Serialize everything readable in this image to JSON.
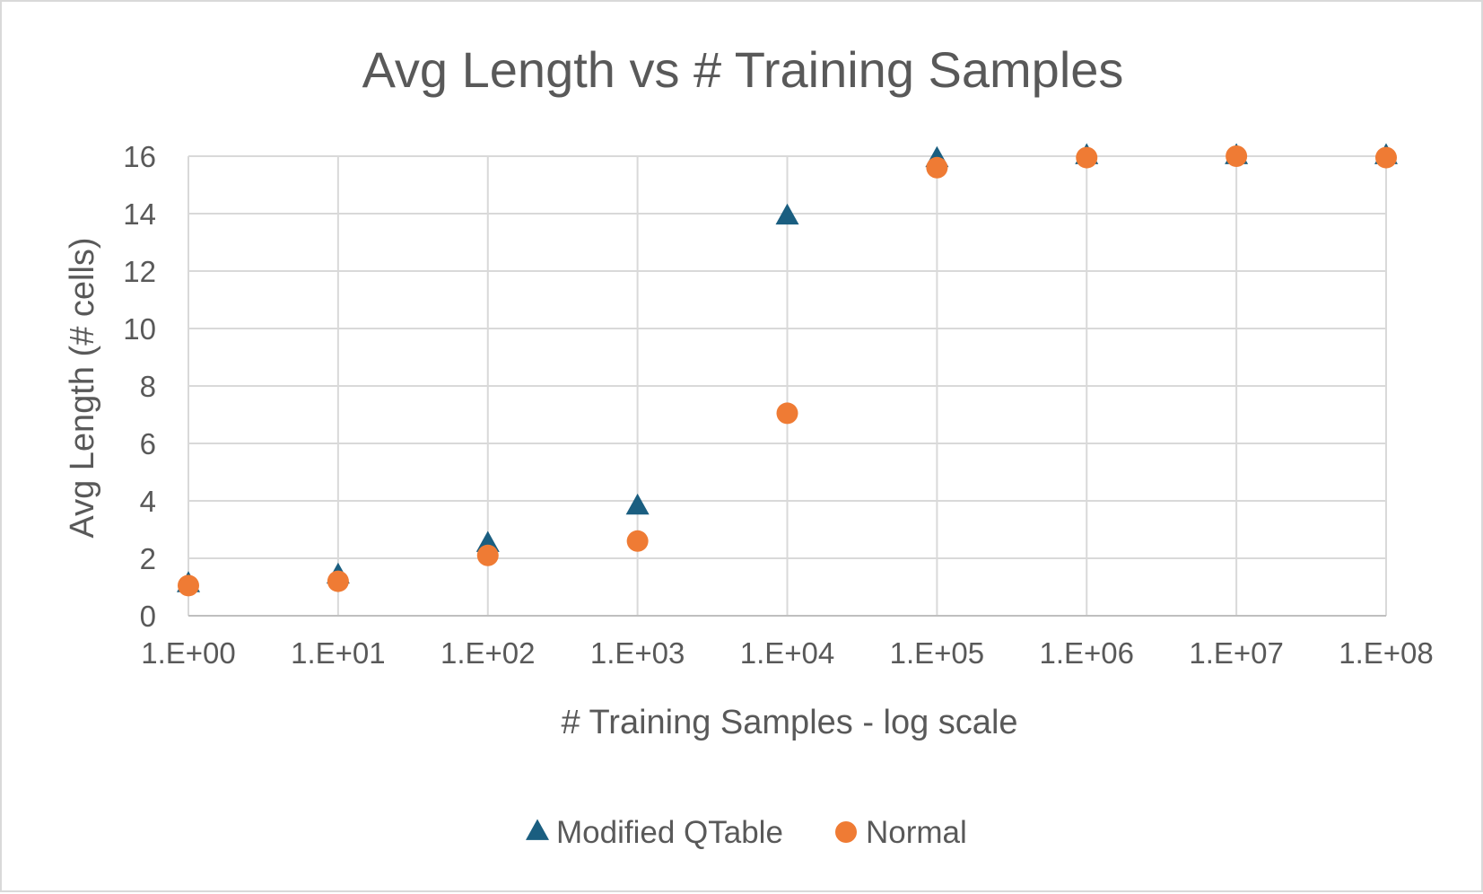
{
  "chart_data": {
    "type": "scatter",
    "title": "Avg Length vs # Training Samples",
    "xlabel": "# Training Samples - log scale",
    "ylabel": "Avg Length (# cells)",
    "x_scale": "log",
    "x": [
      1,
      10,
      100,
      1000,
      10000,
      100000,
      1000000,
      10000000,
      100000000
    ],
    "x_tick_labels": [
      "1.E+00",
      "1.E+01",
      "1.E+02",
      "1.E+03",
      "1.E+04",
      "1.E+05",
      "1.E+06",
      "1.E+07",
      "1.E+08"
    ],
    "y_ticks": [
      "0",
      "2",
      "4",
      "6",
      "8",
      "10",
      "12",
      "14",
      "16"
    ],
    "xlim": [
      1,
      100000000
    ],
    "ylim": [
      0,
      16
    ],
    "grid": true,
    "legend_position": "bottom",
    "series": [
      {
        "name": "Modified QTable",
        "marker": "triangle",
        "color": "#1a5e80",
        "values": [
          1.1,
          1.4,
          2.5,
          3.8,
          13.9,
          15.9,
          16.0,
          16.0,
          16.0
        ]
      },
      {
        "name": "Normal",
        "marker": "circle",
        "color": "#ef7b34",
        "values": [
          1.05,
          1.2,
          2.1,
          2.6,
          7.05,
          15.6,
          15.95,
          16.0,
          15.95
        ]
      }
    ]
  }
}
